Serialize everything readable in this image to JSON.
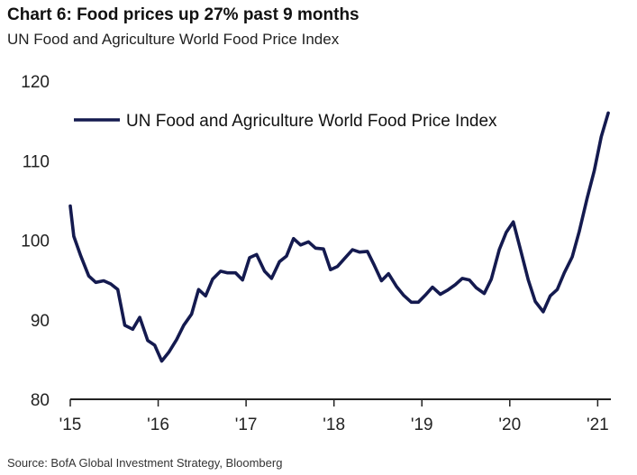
{
  "header": {
    "title": "Chart 6: Food prices up 27% past 9 months",
    "subtitle": "UN Food and Agriculture World Food Price Index"
  },
  "footer": {
    "source": "Source:  BofA Global Investment Strategy, Bloomberg"
  },
  "colors": {
    "series": "#141a4f",
    "axis": "#222222"
  },
  "chart_data": {
    "type": "line",
    "title": "Chart 6: Food prices up 27% past 9 months",
    "subtitle": "UN Food and Agriculture World Food Price Index",
    "xlabel": "",
    "ylabel": "",
    "ylim": [
      80,
      120
    ],
    "xlim": [
      2015.0,
      2021.15
    ],
    "grid": false,
    "legend": "top-left",
    "y_ticks": [
      {
        "value": 80,
        "label": "80"
      },
      {
        "value": 90,
        "label": "90"
      },
      {
        "value": 100,
        "label": "100"
      },
      {
        "value": 110,
        "label": "110"
      },
      {
        "value": 120,
        "label": "120"
      }
    ],
    "x_ticks": [
      {
        "value": 2015,
        "label": "'15"
      },
      {
        "value": 2016,
        "label": "'16"
      },
      {
        "value": 2017,
        "label": "'17"
      },
      {
        "value": 2018,
        "label": "'18"
      },
      {
        "value": 2019,
        "label": "'19"
      },
      {
        "value": 2020,
        "label": "'20"
      },
      {
        "value": 2021,
        "label": "'21"
      }
    ],
    "series": [
      {
        "name": "UN Food and Agriculture World Food Price Index",
        "x": [
          2015.0,
          2015.04,
          2015.12,
          2015.21,
          2015.29,
          2015.38,
          2015.46,
          2015.54,
          2015.62,
          2015.71,
          2015.79,
          2015.88,
          2015.96,
          2016.04,
          2016.12,
          2016.21,
          2016.29,
          2016.38,
          2016.46,
          2016.54,
          2016.62,
          2016.71,
          2016.79,
          2016.88,
          2016.96,
          2017.04,
          2017.12,
          2017.21,
          2017.29,
          2017.38,
          2017.46,
          2017.54,
          2017.62,
          2017.71,
          2017.79,
          2017.88,
          2017.96,
          2018.04,
          2018.12,
          2018.21,
          2018.29,
          2018.38,
          2018.46,
          2018.54,
          2018.62,
          2018.71,
          2018.79,
          2018.88,
          2018.96,
          2019.04,
          2019.12,
          2019.21,
          2019.29,
          2019.38,
          2019.46,
          2019.54,
          2019.62,
          2019.71,
          2019.79,
          2019.88,
          2019.96,
          2020.04,
          2020.12,
          2020.21,
          2020.29,
          2020.38,
          2020.46,
          2020.54,
          2020.62,
          2020.71,
          2020.79,
          2020.88,
          2020.96,
          2021.04,
          2021.12
        ],
        "values": [
          104.3,
          100.5,
          98.0,
          95.5,
          94.7,
          94.9,
          94.5,
          93.8,
          89.3,
          88.8,
          90.3,
          87.4,
          86.8,
          84.8,
          85.9,
          87.5,
          89.3,
          90.7,
          93.8,
          93.0,
          95.1,
          96.1,
          95.9,
          95.9,
          95.0,
          97.8,
          98.2,
          96.1,
          95.2,
          97.3,
          98.0,
          100.2,
          99.4,
          99.8,
          99.0,
          98.9,
          96.3,
          96.7,
          97.7,
          98.8,
          98.5,
          98.6,
          96.8,
          94.9,
          95.8,
          94.2,
          93.1,
          92.2,
          92.2,
          93.1,
          94.1,
          93.2,
          93.7,
          94.4,
          95.2,
          95.0,
          94.0,
          93.3,
          95.1,
          98.8,
          101.0,
          102.3,
          98.9,
          95.0,
          92.3,
          91.0,
          93.0,
          93.8,
          95.9,
          97.9,
          101.1,
          105.3,
          108.7,
          113.0,
          116.0
        ]
      }
    ]
  }
}
